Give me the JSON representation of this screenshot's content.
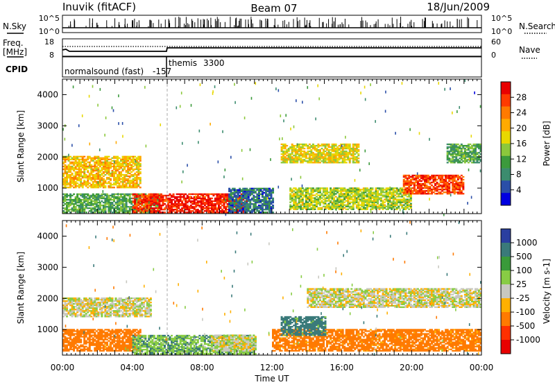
{
  "header": {
    "station": "Inuvik (fitACF)",
    "beam": "Beam 07",
    "date": "18/Jun/2009"
  },
  "status_panels": {
    "nsky_label": "N.Sky",
    "nsearch_label": "N.Search",
    "freq_label_1": "Freq.",
    "freq_label_2": "[MHz]",
    "nave_label": "Nave",
    "cpid_label": "CPID",
    "left_ticks_top": [
      "10^5",
      "10^0"
    ],
    "right_ticks_top": [
      "10^5",
      "10^0"
    ],
    "left_ticks_freq": [
      "18",
      "8"
    ],
    "right_ticks_nave": [
      "60",
      "0"
    ],
    "cpid_modes": [
      {
        "name": "normalsound (fast)",
        "id": "-157",
        "start_hour": 0
      },
      {
        "name": "themis",
        "id": "3300",
        "start_hour": 6
      }
    ]
  },
  "colorbars": {
    "power": {
      "label": "Power [dB]",
      "ticks": [
        "28",
        "24",
        "20",
        "16",
        "12",
        "8",
        "4"
      ],
      "colors": [
        "#e80000",
        "#ff3a00",
        "#ff7a00",
        "#ffaa00",
        "#e8d800",
        "#8cc83c",
        "#3c9a3c",
        "#3c8c6e",
        "#2a4ea8",
        "#0000e0"
      ]
    },
    "velocity": {
      "label": "Velocity [m s-1]",
      "ticks": [
        "1000",
        "500",
        "100",
        "25",
        "-25",
        "-100",
        "-500",
        "-1000"
      ],
      "colors": [
        "#2a3fa0",
        "#3a7a7a",
        "#3a9a3a",
        "#88cc44",
        "#c8c8c0",
        "#ffb000",
        "#ff7a00",
        "#ff3000",
        "#e80000"
      ]
    }
  },
  "axes": {
    "ylabel": "Slant Range [km]",
    "xlabel": "Time UT",
    "x_ticks": [
      "00:00",
      "04:00",
      "08:00",
      "12:00",
      "16:00",
      "20:00",
      "00:00"
    ],
    "y_ticks": [
      "4000",
      "3000",
      "2000",
      "1000"
    ]
  },
  "chart_data": [
    {
      "type": "heatmap",
      "panel": "power",
      "x_range_hours": [
        0,
        24
      ],
      "y_range_km": [
        180,
        4500
      ],
      "units": "dB",
      "features": [
        {
          "t_start": 0.0,
          "t_end": 4.5,
          "r_low": 1000,
          "r_high": 2000,
          "value": 20
        },
        {
          "t_start": 0.0,
          "t_end": 5.5,
          "r_low": 200,
          "r_high": 800,
          "value": 12
        },
        {
          "t_start": 4.0,
          "t_end": 5.0,
          "r_low": 200,
          "r_high": 800,
          "value": 27
        },
        {
          "t_start": 5.0,
          "t_end": 10.5,
          "r_low": 200,
          "r_high": 800,
          "value": 29
        },
        {
          "t_start": 9.5,
          "t_end": 12.0,
          "r_low": 200,
          "r_high": 1000,
          "value": 8
        },
        {
          "t_start": 12.5,
          "t_end": 17.0,
          "r_low": 1800,
          "r_high": 2400,
          "value": 18
        },
        {
          "t_start": 13.0,
          "t_end": 20.0,
          "r_low": 300,
          "r_high": 1000,
          "value": 16
        },
        {
          "t_start": 19.5,
          "t_end": 23.0,
          "r_low": 800,
          "r_high": 1400,
          "value": 27
        },
        {
          "t_start": 22.0,
          "t_end": 24.0,
          "r_low": 1800,
          "r_high": 2400,
          "value": 12
        }
      ]
    },
    {
      "type": "heatmap",
      "panel": "velocity",
      "x_range_hours": [
        0,
        24
      ],
      "y_range_km": [
        180,
        4500
      ],
      "units": "m s-1",
      "features": [
        {
          "t_start": 0.0,
          "t_end": 5.0,
          "r_low": 1400,
          "r_high": 2000,
          "value": 0
        },
        {
          "t_start": 0.0,
          "t_end": 4.5,
          "r_low": 300,
          "r_high": 1000,
          "value": -200
        },
        {
          "t_start": 4.0,
          "t_end": 11.0,
          "r_low": 200,
          "r_high": 800,
          "value": 80
        },
        {
          "t_start": 8.5,
          "t_end": 11.0,
          "r_low": 300,
          "r_high": 800,
          "value": 0
        },
        {
          "t_start": 14.0,
          "t_end": 24.0,
          "r_low": 1700,
          "r_high": 2300,
          "value": 0
        },
        {
          "t_start": 12.0,
          "t_end": 24.0,
          "r_low": 300,
          "r_high": 1000,
          "value": -150
        },
        {
          "t_start": 12.5,
          "t_end": 15.0,
          "r_low": 800,
          "r_high": 1400,
          "value": 150
        }
      ]
    }
  ]
}
